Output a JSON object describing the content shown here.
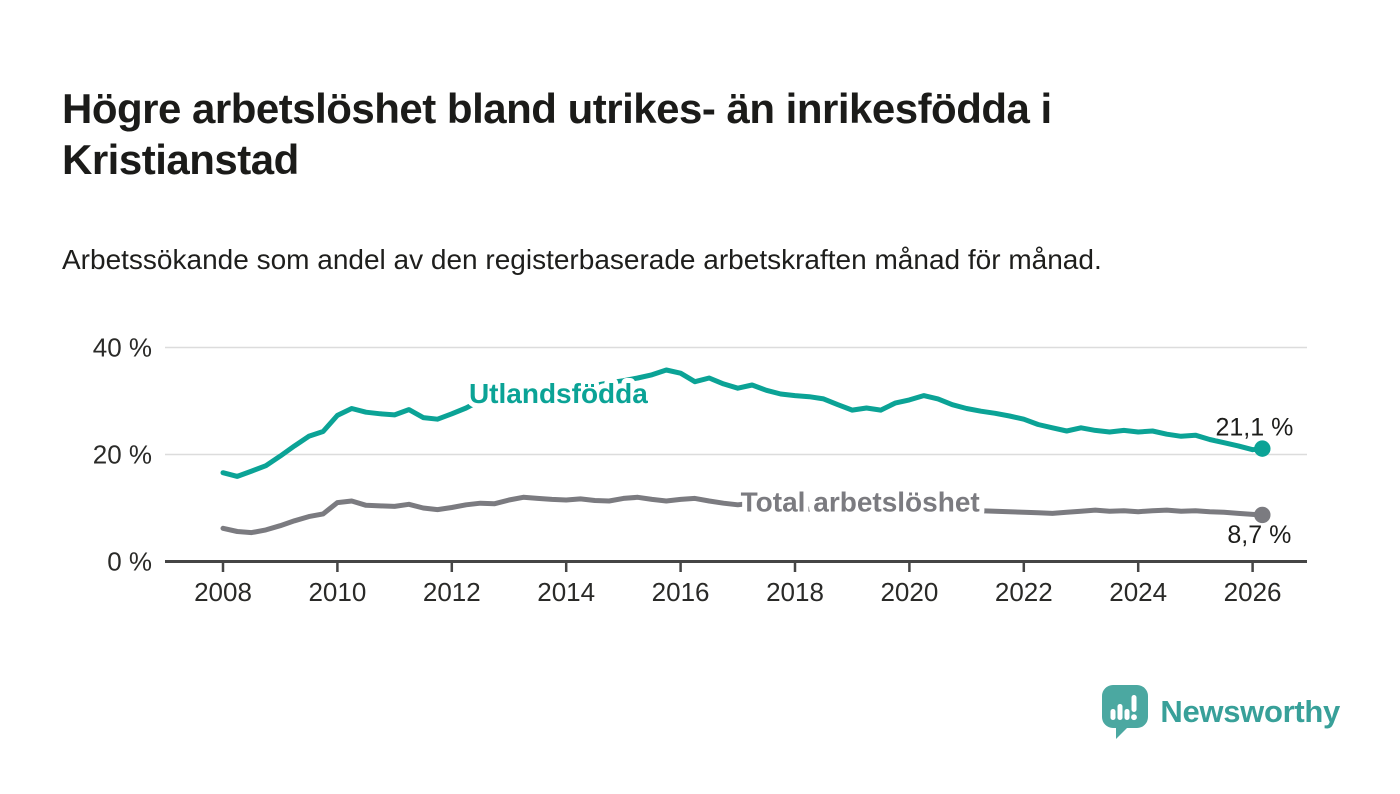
{
  "header": {
    "title": "Högre arbetslöshet bland utrikes- än inrikesfödda i Kristianstad",
    "subtitle": "Arbetssökande som andel av den registerbaserade arbetskraften månad för månad."
  },
  "chart_data": {
    "type": "line",
    "title": "Högre arbetslöshet bland utrikes- än inrikesfödda i Kristianstad",
    "xlabel": "",
    "ylabel": "Arbetssökande som andel av den registerbaserade arbetskraften (%)",
    "grid": true,
    "legend_position": "inline-labels",
    "xlim": [
      2007,
      2027
    ],
    "ylim": [
      0,
      42
    ],
    "xticks": [
      2008,
      2010,
      2012,
      2014,
      2016,
      2018,
      2020,
      2022,
      2024,
      2026
    ],
    "yticks": [
      {
        "value": 0,
        "label": "0 %"
      },
      {
        "value": 20,
        "label": "20 %"
      },
      {
        "value": 40,
        "label": "40 %"
      }
    ],
    "x": [
      2008,
      2008.25,
      2008.5,
      2008.75,
      2009,
      2009.25,
      2009.5,
      2009.75,
      2010,
      2010.25,
      2010.5,
      2010.75,
      2011,
      2011.25,
      2011.5,
      2011.75,
      2012,
      2012.25,
      2012.5,
      2012.75,
      2013,
      2013.25,
      2013.5,
      2013.75,
      2014,
      2014.25,
      2014.5,
      2014.75,
      2015,
      2015.25,
      2015.5,
      2015.75,
      2016,
      2016.25,
      2016.5,
      2016.75,
      2017,
      2017.25,
      2017.5,
      2017.75,
      2018,
      2018.25,
      2018.5,
      2018.75,
      2019,
      2019.25,
      2019.5,
      2019.75,
      2020,
      2020.25,
      2020.5,
      2020.75,
      2021,
      2021.25,
      2021.5,
      2021.75,
      2022,
      2022.25,
      2022.5,
      2022.75,
      2023,
      2023.25,
      2023.5,
      2023.75,
      2024,
      2024.25,
      2024.5,
      2024.75,
      2025,
      2025.25,
      2025.5,
      2025.75,
      2026,
      2026.17
    ],
    "series": [
      {
        "name": "Utlandsfödda",
        "color": "#0ba396",
        "end_label": "21,1 %",
        "end_value": 21.1,
        "label_pos": {
          "x": 2012.3,
          "y": 29.6
        },
        "values": [
          16.6,
          15.9,
          16.9,
          17.9,
          19.7,
          21.6,
          23.4,
          24.3,
          27.3,
          28.6,
          27.9,
          27.6,
          27.4,
          28.4,
          26.9,
          26.6,
          27.6,
          28.7,
          30.1,
          29.5,
          30.2,
          30.6,
          31.1,
          31.6,
          32.1,
          32.5,
          32.9,
          33.4,
          33.8,
          34.3,
          34.9,
          35.8,
          35.2,
          33.6,
          34.3,
          33.2,
          32.4,
          33.0,
          32.0,
          31.3,
          31.0,
          30.8,
          30.4,
          29.3,
          28.3,
          28.7,
          28.3,
          29.6,
          30.2,
          31.0,
          30.4,
          29.3,
          28.6,
          28.1,
          27.7,
          27.2,
          26.6,
          25.6,
          25.0,
          24.4,
          25.0,
          24.5,
          24.2,
          24.5,
          24.2,
          24.4,
          23.8,
          23.4,
          23.6,
          22.8,
          22.2,
          21.6,
          20.9,
          21.1
        ]
      },
      {
        "name": "Total arbetslöshet",
        "color": "#7b7b80",
        "end_label": "8,7 %",
        "end_value": 8.7,
        "label_pos": {
          "x": 2017.05,
          "y": 9.35
        },
        "values": [
          6.2,
          5.6,
          5.4,
          5.9,
          6.7,
          7.6,
          8.4,
          8.9,
          11.0,
          11.3,
          10.5,
          10.4,
          10.3,
          10.7,
          10.0,
          9.7,
          10.1,
          10.6,
          10.9,
          10.8,
          11.5,
          12.0,
          11.8,
          11.6,
          11.5,
          11.7,
          11.4,
          11.3,
          11.8,
          12.0,
          11.6,
          11.3,
          11.6,
          11.8,
          11.3,
          10.9,
          10.6,
          10.9,
          10.4,
          10.1,
          10.0,
          9.8,
          9.6,
          9.5,
          9.4,
          9.5,
          9.7,
          9.9,
          10.4,
          10.6,
          10.2,
          9.7,
          9.6,
          9.5,
          9.4,
          9.3,
          9.2,
          9.1,
          9.0,
          9.2,
          9.4,
          9.6,
          9.4,
          9.5,
          9.3,
          9.5,
          9.6,
          9.4,
          9.5,
          9.3,
          9.2,
          9.0,
          8.8,
          8.7
        ]
      }
    ]
  },
  "footer": {
    "brand": "Newsworthy",
    "logo_icon": "bar-chart-speech-bubble"
  },
  "colors": {
    "accent_teal": "#0ba396",
    "series_gray": "#7b7b80",
    "grid": "#dcdcdc",
    "axis": "#454545",
    "text_dark": "#1b1b19",
    "logo_teal": "#4ba8a1",
    "logo_text_teal": "#38a099"
  }
}
